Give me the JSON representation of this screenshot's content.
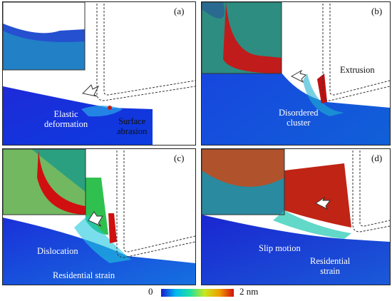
{
  "panels": [
    {
      "label": "(a)",
      "annotations": [
        "Elastic\ndeformation",
        "Surface\nabrasion"
      ]
    },
    {
      "label": "(b)",
      "annotations": [
        "Extrusion",
        "Disordered\ncluster"
      ]
    },
    {
      "label": "(c)",
      "annotations": [
        "Dislocation",
        "Residential strain"
      ]
    },
    {
      "label": "(d)",
      "annotations": [
        "Slip motion",
        "Residential\nstrain"
      ]
    }
  ],
  "colorbar": {
    "min_label": "0",
    "max_label": "2 nm",
    "colors": [
      "#1a1ad0",
      "#00b8f0",
      "#20e0a0",
      "#c8e820",
      "#f0a000",
      "#d01010"
    ]
  }
}
